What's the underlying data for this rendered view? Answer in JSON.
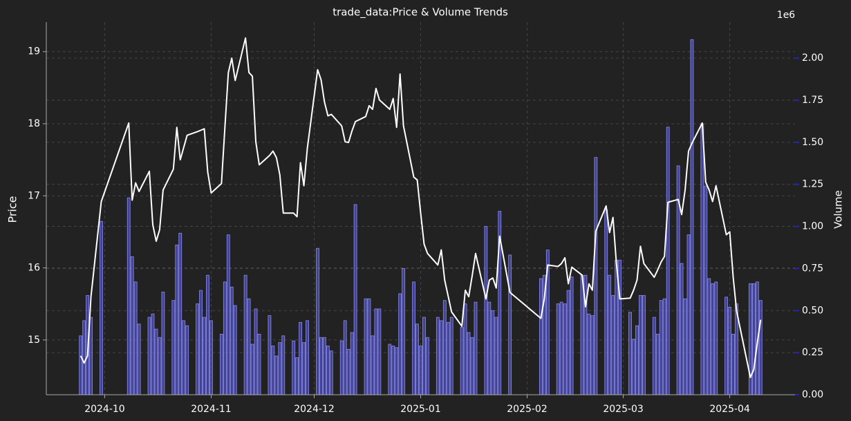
{
  "chart_data": {
    "type": "combo",
    "title": "trade_data:Price & Volume Trends",
    "ylabel": "Price",
    "y2label": "Volume",
    "y2_offset_label": "1e6",
    "xlim": [
      "2024-09-14",
      "2025-04-20"
    ],
    "xticks": [
      {
        "value": "2024-10-01",
        "label": "2024-10"
      },
      {
        "value": "2024-11-01",
        "label": "2024-11"
      },
      {
        "value": "2024-12-01",
        "label": "2024-12"
      },
      {
        "value": "2025-01-01",
        "label": "2025-01"
      },
      {
        "value": "2025-02-01",
        "label": "2025-02"
      },
      {
        "value": "2025-03-01",
        "label": "2025-03"
      },
      {
        "value": "2025-04-01",
        "label": "2025-04"
      }
    ],
    "ylim": [
      14.24,
      19.41
    ],
    "yticks": [
      15,
      16,
      17,
      18,
      19
    ],
    "y2lim": [
      0,
      2214000
    ],
    "y2ticks": [
      {
        "value": 0,
        "label": "0.00"
      },
      {
        "value": 250000,
        "label": "0.25"
      },
      {
        "value": 500000,
        "label": "0.50"
      },
      {
        "value": 750000,
        "label": "0.75"
      },
      {
        "value": 1000000,
        "label": "1.00"
      },
      {
        "value": 1250000,
        "label": "1.25"
      },
      {
        "value": 1500000,
        "label": "1.50"
      },
      {
        "value": 1750000,
        "label": "1.75"
      },
      {
        "value": 2000000,
        "label": "2.00"
      }
    ],
    "grid": true,
    "y2color": "#2222cc",
    "x": [
      "2024-09-24",
      "2024-09-25",
      "2024-09-26",
      "2024-09-27",
      "2024-09-30",
      "2024-10-08",
      "2024-10-09",
      "2024-10-10",
      "2024-10-11",
      "2024-10-14",
      "2024-10-15",
      "2024-10-16",
      "2024-10-17",
      "2024-10-18",
      "2024-10-21",
      "2024-10-22",
      "2024-10-23",
      "2024-10-24",
      "2024-10-25",
      "2024-10-28",
      "2024-10-29",
      "2024-10-30",
      "2024-10-31",
      "2024-11-01",
      "2024-11-04",
      "2024-11-05",
      "2024-11-06",
      "2024-11-07",
      "2024-11-08",
      "2024-11-11",
      "2024-11-12",
      "2024-11-13",
      "2024-11-14",
      "2024-11-15",
      "2024-11-18",
      "2024-11-19",
      "2024-11-20",
      "2024-11-21",
      "2024-11-22",
      "2024-11-25",
      "2024-11-26",
      "2024-11-27",
      "2024-11-28",
      "2024-11-29",
      "2024-12-02",
      "2024-12-03",
      "2024-12-04",
      "2024-12-05",
      "2024-12-06",
      "2024-12-09",
      "2024-12-10",
      "2024-12-11",
      "2024-12-12",
      "2024-12-13",
      "2024-12-16",
      "2024-12-17",
      "2024-12-18",
      "2024-12-19",
      "2024-12-20",
      "2024-12-23",
      "2024-12-24",
      "2024-12-25",
      "2024-12-26",
      "2024-12-27",
      "2024-12-30",
      "2024-12-31",
      "2025-01-01",
      "2025-01-02",
      "2025-01-03",
      "2025-01-06",
      "2025-01-07",
      "2025-01-08",
      "2025-01-09",
      "2025-01-10",
      "2025-01-13",
      "2025-01-14",
      "2025-01-15",
      "2025-01-16",
      "2025-01-17",
      "2025-01-20",
      "2025-01-21",
      "2025-01-22",
      "2025-01-23",
      "2025-01-24",
      "2025-01-27",
      "2025-02-05",
      "2025-02-06",
      "2025-02-07",
      "2025-02-10",
      "2025-02-11",
      "2025-02-12",
      "2025-02-13",
      "2025-02-14",
      "2025-02-17",
      "2025-02-18",
      "2025-02-19",
      "2025-02-20",
      "2025-02-21",
      "2025-02-24",
      "2025-02-25",
      "2025-02-26",
      "2025-02-27",
      "2025-02-28",
      "2025-03-03",
      "2025-03-04",
      "2025-03-05",
      "2025-03-06",
      "2025-03-07",
      "2025-03-10",
      "2025-03-11",
      "2025-03-12",
      "2025-03-13",
      "2025-03-14",
      "2025-03-17",
      "2025-03-18",
      "2025-03-19",
      "2025-03-20",
      "2025-03-21",
      "2025-03-24",
      "2025-03-25",
      "2025-03-26",
      "2025-03-27",
      "2025-03-28",
      "2025-03-31",
      "2025-04-01",
      "2025-04-02",
      "2025-04-03",
      "2025-04-07",
      "2025-04-08",
      "2025-04-09",
      "2025-04-10"
    ],
    "series": [
      {
        "type": "line",
        "color": "#ffffff",
        "values": [
          14.78,
          14.68,
          14.78,
          15.6,
          16.92,
          18.01,
          16.94,
          17.18,
          17.06,
          17.34,
          16.6,
          16.37,
          16.53,
          17.08,
          17.37,
          17.95,
          17.5,
          17.67,
          17.84,
          17.89,
          17.91,
          17.93,
          17.33,
          17.04,
          17.17,
          17.95,
          18.71,
          18.91,
          18.6,
          19.19,
          18.71,
          18.66,
          17.75,
          17.43,
          17.56,
          17.62,
          17.53,
          17.29,
          16.76,
          16.76,
          16.71,
          17.46,
          17.14,
          17.66,
          18.75,
          18.61,
          18.3,
          18.11,
          18.13,
          17.97,
          17.75,
          17.74,
          17.9,
          18.03,
          18.1,
          18.25,
          18.2,
          18.49,
          18.33,
          18.2,
          18.35,
          17.95,
          18.69,
          17.97,
          17.26,
          17.22,
          16.76,
          16.33,
          16.2,
          16.04,
          16.25,
          15.83,
          15.61,
          15.39,
          15.19,
          15.69,
          15.6,
          15.89,
          16.2,
          15.57,
          15.83,
          15.86,
          15.72,
          16.44,
          15.66,
          15.3,
          15.57,
          16.04,
          16.02,
          16.06,
          16.14,
          15.78,
          16.01,
          15.9,
          15.46,
          15.78,
          15.69,
          16.51,
          16.86,
          16.49,
          16.7,
          16.06,
          15.57,
          15.58,
          15.69,
          15.83,
          16.3,
          16.06,
          15.87,
          15.97,
          16.08,
          16.16,
          16.91,
          16.95,
          16.74,
          17.08,
          17.62,
          17.73,
          18.01,
          17.19,
          17.08,
          16.92,
          17.14,
          16.46,
          16.5,
          15.87,
          15.4,
          14.48,
          14.59,
          14.95,
          15.28
        ]
      },
      {
        "type": "bar",
        "axis": "y2",
        "color": "#5a5ae0",
        "values": [
          350000,
          440000,
          590000,
          460000,
          1030000,
          1170000,
          820000,
          670000,
          420000,
          460000,
          480000,
          390000,
          340000,
          610000,
          560000,
          890000,
          960000,
          440000,
          410000,
          540000,
          620000,
          460000,
          710000,
          440000,
          360000,
          670000,
          950000,
          640000,
          530000,
          710000,
          570000,
          300000,
          510000,
          360000,
          470000,
          290000,
          230000,
          310000,
          350000,
          320000,
          220000,
          430000,
          310000,
          440000,
          870000,
          340000,
          340000,
          290000,
          260000,
          320000,
          440000,
          270000,
          370000,
          1130000,
          570000,
          570000,
          350000,
          510000,
          510000,
          300000,
          290000,
          280000,
          600000,
          750000,
          670000,
          420000,
          290000,
          460000,
          340000,
          460000,
          440000,
          560000,
          430000,
          460000,
          400000,
          540000,
          370000,
          340000,
          550000,
          1000000,
          550000,
          500000,
          460000,
          1090000,
          830000,
          690000,
          710000,
          860000,
          540000,
          550000,
          540000,
          620000,
          700000,
          710000,
          710000,
          480000,
          470000,
          1410000,
          1100000,
          710000,
          590000,
          800000,
          800000,
          490000,
          330000,
          410000,
          590000,
          590000,
          460000,
          360000,
          560000,
          570000,
          1590000,
          1360000,
          780000,
          570000,
          950000,
          2110000,
          1610000,
          1240000,
          690000,
          660000,
          670000,
          580000,
          520000,
          360000,
          540000,
          660000,
          660000,
          670000,
          560000
        ]
      }
    ]
  }
}
